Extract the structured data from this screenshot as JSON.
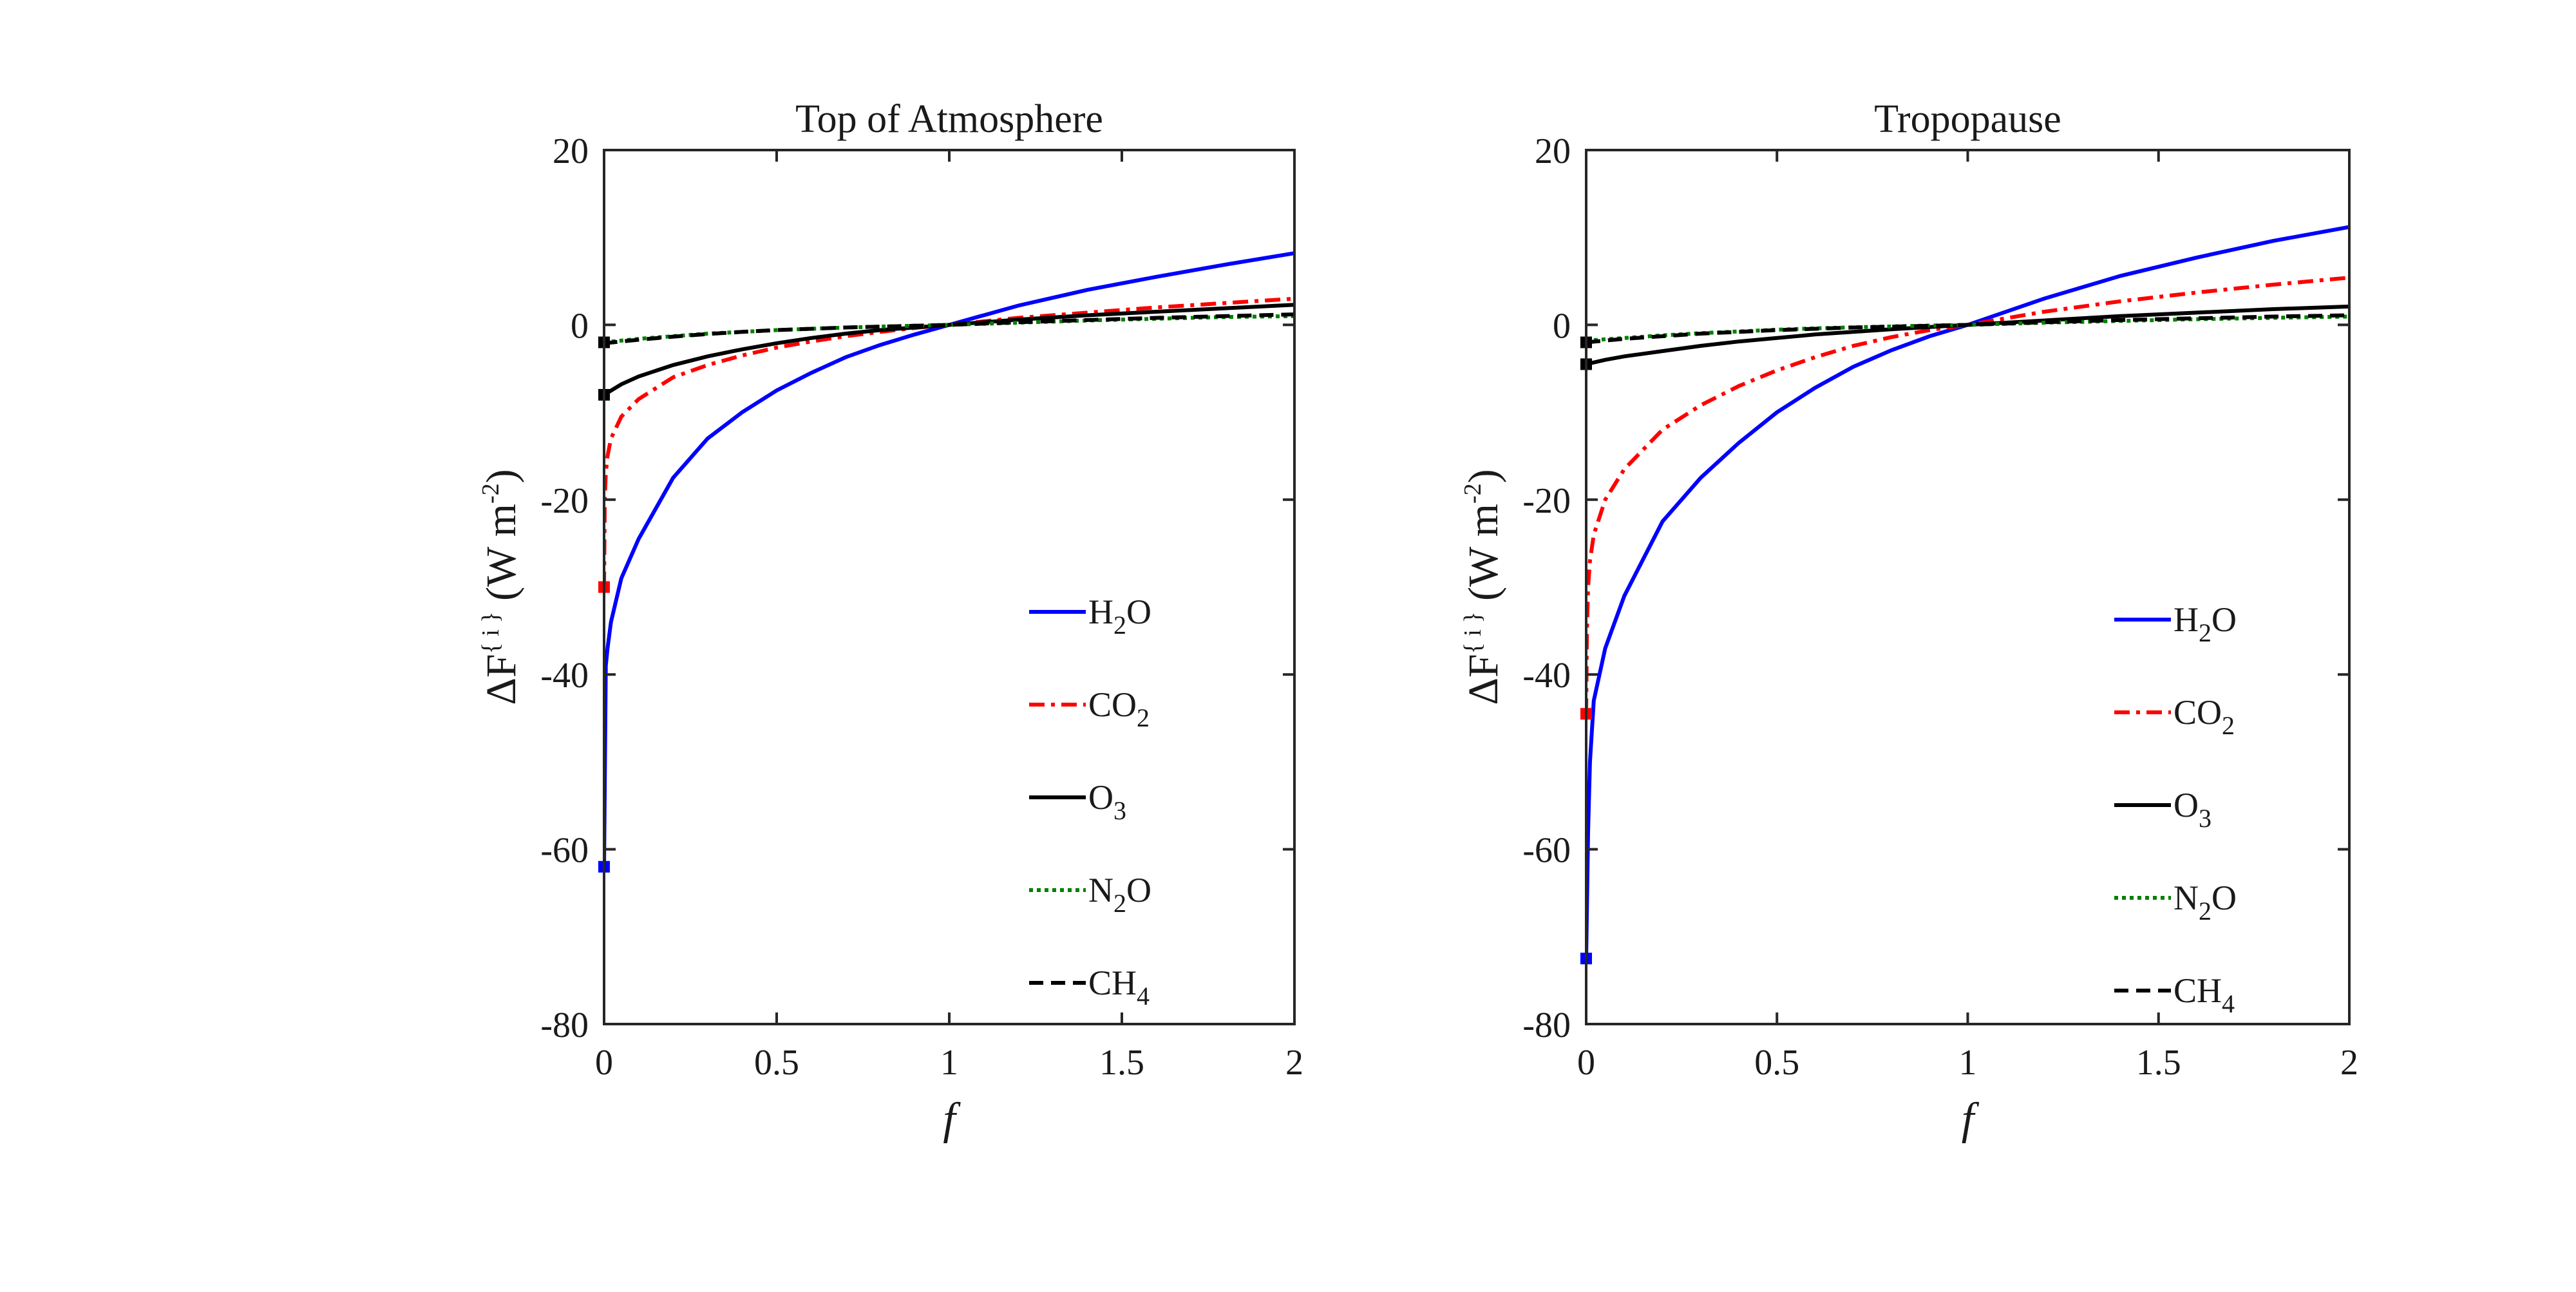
{
  "chart_data": [
    {
      "type": "line",
      "title": "Top of Atmosphere",
      "xlabel": "f",
      "ylabel": "ΔF^{i} (W m^-2)",
      "xlim": [
        0,
        2
      ],
      "ylim": [
        -80,
        20
      ],
      "xticks": [
        "0",
        "0.5",
        "1",
        "1.5",
        "2"
      ],
      "yticks": [
        "20",
        "0",
        "-20",
        "-40",
        "-60",
        "-80"
      ],
      "legend_position": "right-center",
      "series": [
        {
          "name": "H2O",
          "label": "H",
          "sub": "2",
          "suffix": "O",
          "color": "#0000ff",
          "dash": "solid",
          "x": [
            0.005,
            0.01,
            0.02,
            0.05,
            0.1,
            0.2,
            0.3,
            0.4,
            0.5,
            0.6,
            0.7,
            0.8,
            0.9,
            1.0,
            1.2,
            1.4,
            1.6,
            1.8,
            2.0
          ],
          "y": [
            -39,
            -37,
            -34,
            -29,
            -24.5,
            -17.5,
            -13,
            -10,
            -7.5,
            -5.5,
            -3.7,
            -2.3,
            -1.1,
            0,
            2.2,
            4.0,
            5.5,
            6.9,
            8.2
          ],
          "marker": [
            0,
            -62
          ]
        },
        {
          "name": "CO2",
          "label": "CO",
          "sub": "2",
          "suffix": "",
          "color": "#ff0000",
          "dash": "dashdot",
          "x": [
            0.002,
            0.005,
            0.01,
            0.02,
            0.05,
            0.1,
            0.2,
            0.3,
            0.4,
            0.5,
            0.6,
            0.7,
            0.8,
            0.9,
            1.0,
            1.2,
            1.4,
            1.6,
            1.8,
            2.0
          ],
          "y": [
            -20,
            -17,
            -15,
            -13,
            -10.5,
            -8.5,
            -6,
            -4.6,
            -3.5,
            -2.6,
            -1.9,
            -1.3,
            -0.8,
            -0.35,
            0,
            0.8,
            1.4,
            2.0,
            2.5,
            3.0
          ],
          "marker": [
            0,
            -30
          ]
        },
        {
          "name": "O3",
          "label": "O",
          "sub": "3",
          "suffix": "",
          "color": "#000000",
          "dash": "solid",
          "x": [
            0,
            0.05,
            0.1,
            0.2,
            0.3,
            0.4,
            0.5,
            0.6,
            0.7,
            0.8,
            0.9,
            1.0,
            1.2,
            1.4,
            1.6,
            1.8,
            2.0
          ],
          "y": [
            -8,
            -6.8,
            -5.9,
            -4.6,
            -3.6,
            -2.8,
            -2.1,
            -1.5,
            -1.0,
            -0.6,
            -0.3,
            0,
            0.6,
            1.1,
            1.5,
            1.9,
            2.3
          ],
          "marker": [
            0,
            -8
          ]
        },
        {
          "name": "N2O",
          "label": "N",
          "sub": "2",
          "suffix": "O",
          "color": "#008000",
          "dash": "dotted",
          "x": [
            0,
            0.1,
            0.2,
            0.3,
            0.4,
            0.5,
            0.6,
            0.7,
            0.8,
            0.9,
            1.0,
            1.2,
            1.4,
            1.6,
            1.8,
            2.0
          ],
          "y": [
            -2,
            -1.6,
            -1.3,
            -1.0,
            -0.8,
            -0.6,
            -0.45,
            -0.3,
            -0.2,
            -0.1,
            0,
            0.25,
            0.5,
            0.7,
            0.9,
            1.0
          ],
          "marker": null
        },
        {
          "name": "CH4",
          "label": "CH",
          "sub": "4",
          "suffix": "",
          "color": "#000000",
          "dash": "dashed",
          "x": [
            0,
            0.1,
            0.2,
            0.3,
            0.4,
            0.5,
            0.6,
            0.7,
            0.8,
            0.9,
            1.0,
            1.2,
            1.4,
            1.6,
            1.8,
            2.0
          ],
          "y": [
            -2.1,
            -1.7,
            -1.35,
            -1.05,
            -0.8,
            -0.6,
            -0.45,
            -0.3,
            -0.2,
            -0.1,
            0,
            0.3,
            0.55,
            0.8,
            1.0,
            1.2
          ],
          "marker": [
            0,
            -2
          ]
        }
      ]
    },
    {
      "type": "line",
      "title": "Tropopause",
      "xlabel": "f",
      "ylabel": "ΔF^{i} (W m^-2)",
      "xlim": [
        0,
        2
      ],
      "ylim": [
        -80,
        20
      ],
      "xticks": [
        "0",
        "0.5",
        "1",
        "1.5",
        "2"
      ],
      "yticks": [
        "20",
        "0",
        "-20",
        "-40",
        "-60",
        "-80"
      ],
      "legend_position": "right-center",
      "series": [
        {
          "name": "H2O",
          "label": "H",
          "sub": "2",
          "suffix": "O",
          "color": "#0000ff",
          "dash": "solid",
          "x": [
            0.005,
            0.01,
            0.02,
            0.05,
            0.1,
            0.2,
            0.3,
            0.4,
            0.5,
            0.6,
            0.7,
            0.8,
            0.9,
            1.0,
            1.2,
            1.4,
            1.6,
            1.8,
            2.0
          ],
          "y": [
            -58,
            -50,
            -43,
            -37,
            -31,
            -22.5,
            -17.5,
            -13.5,
            -10,
            -7.2,
            -4.8,
            -2.9,
            -1.3,
            0,
            3.0,
            5.6,
            7.7,
            9.6,
            11.2
          ],
          "marker": [
            0,
            -72.5
          ]
        },
        {
          "name": "CO2",
          "label": "CO",
          "sub": "2",
          "suffix": "",
          "color": "#ff0000",
          "dash": "dashdot",
          "x": [
            0.002,
            0.005,
            0.01,
            0.02,
            0.05,
            0.1,
            0.2,
            0.3,
            0.4,
            0.5,
            0.6,
            0.7,
            0.8,
            0.9,
            1.0,
            1.2,
            1.4,
            1.6,
            1.8,
            2.0
          ],
          "y": [
            -35,
            -30,
            -27,
            -24,
            -20,
            -16.5,
            -12,
            -9.2,
            -7,
            -5.2,
            -3.7,
            -2.4,
            -1.4,
            -0.6,
            0,
            1.5,
            2.7,
            3.7,
            4.6,
            5.4
          ],
          "marker": [
            0,
            -44.5
          ]
        },
        {
          "name": "O3",
          "label": "O",
          "sub": "3",
          "suffix": "",
          "color": "#000000",
          "dash": "solid",
          "x": [
            0,
            0.05,
            0.1,
            0.2,
            0.3,
            0.4,
            0.5,
            0.6,
            0.7,
            0.8,
            0.9,
            1.0,
            1.2,
            1.4,
            1.6,
            1.8,
            2.0
          ],
          "y": [
            -4.5,
            -4.0,
            -3.6,
            -3.0,
            -2.4,
            -1.9,
            -1.5,
            -1.1,
            -0.8,
            -0.5,
            -0.25,
            0,
            0.5,
            1.0,
            1.4,
            1.8,
            2.1
          ],
          "marker": [
            0,
            -4.5
          ]
        },
        {
          "name": "N2O",
          "label": "N",
          "sub": "2",
          "suffix": "O",
          "color": "#008000",
          "dash": "dotted",
          "x": [
            0,
            0.1,
            0.2,
            0.3,
            0.4,
            0.5,
            0.6,
            0.7,
            0.8,
            0.9,
            1.0,
            1.2,
            1.4,
            1.6,
            1.8,
            2.0
          ],
          "y": [
            -1.8,
            -1.5,
            -1.2,
            -0.95,
            -0.75,
            -0.55,
            -0.4,
            -0.28,
            -0.18,
            -0.08,
            0,
            0.25,
            0.45,
            0.65,
            0.8,
            0.95
          ],
          "marker": null
        },
        {
          "name": "CH4",
          "label": "CH",
          "sub": "4",
          "suffix": "",
          "color": "#000000",
          "dash": "dashed",
          "x": [
            0,
            0.1,
            0.2,
            0.3,
            0.4,
            0.5,
            0.6,
            0.7,
            0.8,
            0.9,
            1.0,
            1.2,
            1.4,
            1.6,
            1.8,
            2.0
          ],
          "y": [
            -2.0,
            -1.6,
            -1.3,
            -1.0,
            -0.8,
            -0.6,
            -0.45,
            -0.3,
            -0.2,
            -0.1,
            0,
            0.3,
            0.55,
            0.75,
            0.95,
            1.1
          ],
          "marker": [
            0,
            -2
          ]
        }
      ]
    }
  ]
}
